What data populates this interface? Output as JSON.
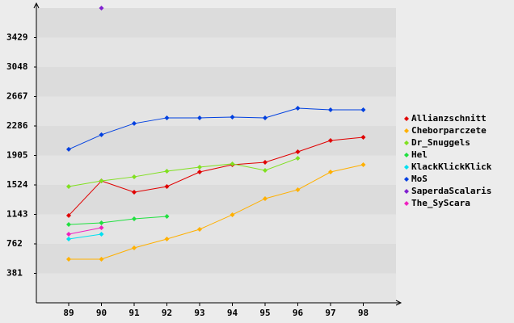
{
  "chart_data": {
    "type": "line",
    "categories": [
      "89",
      "90",
      "91",
      "92",
      "93",
      "94",
      "95",
      "96",
      "97",
      "98"
    ],
    "series": [
      {
        "name": "Allianzschnitt",
        "color": "#e00000",
        "values": [
          1128,
          1576,
          1430,
          1503,
          1691,
          1785,
          1816,
          1952,
          2098,
          2140
        ]
      },
      {
        "name": "Cheborparczete",
        "color": "#ffb000",
        "values": [
          564,
          564,
          710,
          825,
          950,
          1138,
          1347,
          1462,
          1691,
          1785
        ]
      },
      {
        "name": "Dr_Snuggels",
        "color": "#80e020",
        "values": [
          1503,
          1576,
          1629,
          1702,
          1754,
          1796,
          1712,
          1869,
          null,
          null
        ]
      },
      {
        "name": "Hel",
        "color": "#20e040",
        "values": [
          1013,
          1034,
          1086,
          1117,
          null,
          null,
          null,
          null,
          null,
          null
        ]
      },
      {
        "name": "KlackKlickKlick",
        "color": "#00e0f0",
        "values": [
          825,
          887,
          null,
          null,
          null,
          null,
          null,
          null,
          null,
          null
        ]
      },
      {
        "name": "MoS",
        "color": "#0040e0",
        "values": [
          1984,
          2172,
          2318,
          2391,
          2391,
          2401,
          2391,
          2516,
          2495,
          2495
        ]
      },
      {
        "name": "SaperdaScalaris",
        "color": "#8020d0",
        "values": [
          null,
          3810,
          null,
          null,
          null,
          null,
          null,
          null,
          null,
          null
        ]
      },
      {
        "name": "The_SyScara",
        "color": "#f020c0",
        "values": [
          887,
          971,
          null,
          null,
          null,
          null,
          null,
          null,
          null,
          null
        ]
      }
    ],
    "ylim": [
      0,
      3810
    ],
    "yticks": [
      381,
      762,
      1143,
      1524,
      1905,
      2286,
      2667,
      3048,
      3429
    ],
    "grid": true,
    "legend": "right"
  }
}
